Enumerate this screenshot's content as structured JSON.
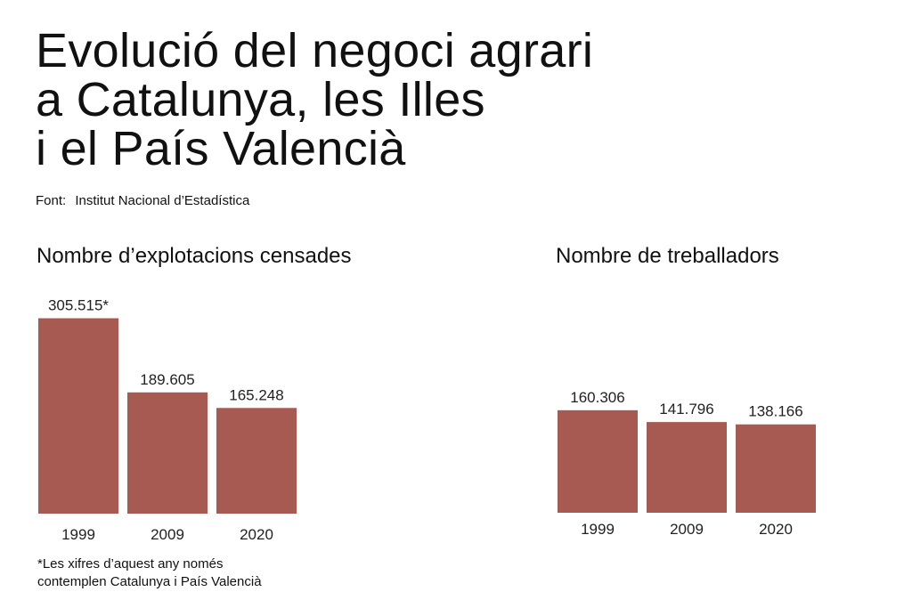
{
  "title_lines": [
    "Evolució del negoci agrari",
    "a Catalunya, les Illes",
    "i el País Valencià"
  ],
  "source": {
    "label": "Font:",
    "text": "Institut Nacional d’Estadística"
  },
  "footnote_lines": [
    "*Les xifres d’aquest any només",
    "contemplen Catalunya i País Valencià"
  ],
  "colors": {
    "bar": "#A65A51"
  },
  "chart_data": [
    {
      "type": "bar",
      "title": "Nombre d’explotacions censades",
      "categories": [
        "1999",
        "2009",
        "2020"
      ],
      "values": [
        305515,
        189605,
        165248
      ],
      "data_labels": [
        "305.515*",
        "189.605",
        "165.248"
      ],
      "xlabel": "",
      "ylabel": "",
      "ylim": [
        0,
        305515
      ],
      "grid": false,
      "legend": "none"
    },
    {
      "type": "bar",
      "title": "Nombre de treballadors",
      "categories": [
        "1999",
        "2009",
        "2020"
      ],
      "values": [
        160306,
        141796,
        138166
      ],
      "data_labels": [
        "160.306",
        "141.796",
        "138.166"
      ],
      "xlabel": "",
      "ylabel": "",
      "ylim": [
        0,
        305515
      ],
      "grid": false,
      "legend": "none"
    }
  ]
}
